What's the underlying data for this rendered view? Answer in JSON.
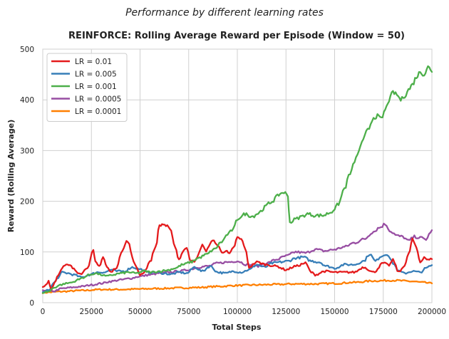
{
  "chart_data": {
    "type": "line",
    "suptitle": "Performance by different learning rates",
    "title": "REINFORCE: Rolling Average Reward per Episode (Window = 50)",
    "xlabel": "Total Steps",
    "ylabel": "Reward (Rolling Average)",
    "xlim": [
      0,
      200000
    ],
    "ylim": [
      0,
      500
    ],
    "xticks": [
      0,
      25000,
      50000,
      75000,
      100000,
      125000,
      150000,
      175000,
      200000
    ],
    "xtick_labels": [
      "0",
      "25000",
      "50000",
      "75000",
      "100000",
      "125000",
      "150000",
      "175000",
      "200000"
    ],
    "yticks": [
      0,
      100,
      200,
      300,
      400,
      500
    ],
    "ytick_labels": [
      "0",
      "100",
      "200",
      "300",
      "400",
      "500"
    ],
    "grid": true,
    "legend_position": "top-left",
    "series": [
      {
        "name": "LR = 0.01",
        "color": "#e41a1c",
        "x": [
          0,
          1500,
          3000,
          4500,
          6000,
          8000,
          10000,
          12000,
          14000,
          16000,
          18000,
          20000,
          23000,
          26000,
          27000,
          29000,
          31000,
          33000,
          35000,
          38000,
          41000,
          43000,
          44500,
          46000,
          48000,
          50000,
          52000,
          55000,
          58000,
          60000,
          62000,
          64000,
          66000,
          68000,
          70000,
          72000,
          74000,
          76000,
          78000,
          80000,
          82000,
          84000,
          86000,
          88000,
          90000,
          92000,
          94000,
          96000,
          98000,
          100000,
          102000,
          104000,
          106000,
          110000,
          115000,
          120000,
          125000,
          130000,
          135000,
          138000,
          140000,
          145000,
          150000,
          155000,
          160000,
          165000,
          170000,
          175000,
          178000,
          180000,
          183000,
          186000,
          188000,
          190000,
          192000,
          194000,
          196000,
          198000,
          200000
        ],
        "y": [
          30,
          35,
          43,
          25,
          40,
          55,
          70,
          74,
          73,
          66,
          60,
          58,
          70,
          102,
          80,
          72,
          90,
          70,
          60,
          70,
          105,
          122,
          115,
          88,
          70,
          55,
          60,
          80,
          110,
          152,
          155,
          150,
          140,
          110,
          85,
          100,
          110,
          82,
          80,
          95,
          115,
          100,
          118,
          122,
          112,
          100,
          102,
          96,
          108,
          128,
          125,
          108,
          70,
          80,
          75,
          72,
          65,
          72,
          78,
          60,
          55,
          62,
          60,
          60,
          60,
          70,
          60,
          78,
          74,
          84,
          60,
          74,
          95,
          125,
          108,
          80,
          90,
          84,
          86
        ]
      },
      {
        "name": "LR = 0.005",
        "color": "#377eb8",
        "x": [
          0,
          3000,
          6000,
          8000,
          10000,
          13000,
          16000,
          20000,
          24000,
          28000,
          32000,
          35000,
          38000,
          42000,
          46000,
          50000,
          54000,
          58000,
          62000,
          66000,
          70000,
          74000,
          78000,
          82000,
          86000,
          90000,
          94000,
          98000,
          102000,
          106000,
          110000,
          114000,
          118000,
          122000,
          126000,
          130000,
          134000,
          138000,
          142000,
          146000,
          150000,
          155000,
          160000,
          165000,
          168000,
          171000,
          174000,
          177000,
          180000,
          183000,
          186000,
          190000,
          194000,
          197000,
          200000
        ],
        "y": [
          20,
          25,
          40,
          50,
          60,
          58,
          55,
          50,
          55,
          60,
          60,
          65,
          62,
          62,
          70,
          66,
          60,
          60,
          58,
          56,
          60,
          58,
          70,
          62,
          72,
          60,
          58,
          62,
          60,
          65,
          75,
          70,
          78,
          80,
          82,
          88,
          90,
          82,
          80,
          72,
          68,
          75,
          75,
          82,
          96,
          82,
          92,
          96,
          78,
          62,
          58,
          62,
          60,
          68,
          74
        ]
      },
      {
        "name": "LR = 0.001",
        "color": "#4daf4a",
        "x": [
          0,
          3000,
          6000,
          9000,
          12000,
          15000,
          18000,
          21000,
          24000,
          27000,
          30000,
          33000,
          36000,
          40000,
          44000,
          48000,
          52000,
          56000,
          60000,
          64000,
          68000,
          72000,
          76000,
          80000,
          84000,
          88000,
          92000,
          95000,
          98000,
          100000,
          102000,
          104000,
          106000,
          108000,
          110000,
          112000,
          114000,
          116000,
          118000,
          120000,
          122000,
          124000,
          126000,
          127000,
          130000,
          133000,
          136000,
          140000,
          144000,
          148000,
          150000,
          152000,
          155000,
          158000,
          161000,
          164000,
          167000,
          170000,
          172000,
          174000,
          176000,
          178000,
          180000,
          182000,
          184000,
          186000,
          188000,
          190000,
          192000,
          194000,
          196000,
          198000,
          200000
        ],
        "y": [
          20,
          22,
          30,
          35,
          38,
          40,
          45,
          50,
          55,
          58,
          55,
          52,
          55,
          58,
          60,
          58,
          62,
          60,
          62,
          64,
          68,
          75,
          80,
          88,
          95,
          105,
          120,
          135,
          145,
          165,
          170,
          175,
          172,
          170,
          175,
          180,
          188,
          195,
          200,
          208,
          215,
          218,
          210,
          158,
          165,
          170,
          175,
          172,
          172,
          178,
          185,
          195,
          225,
          255,
          285,
          315,
          340,
          365,
          368,
          362,
          380,
          400,
          415,
          410,
          400,
          408,
          420,
          430,
          445,
          455,
          450,
          465,
          455
        ]
      },
      {
        "name": "LR = 0.0005",
        "color": "#984ea3",
        "x": [
          0,
          5000,
          10000,
          15000,
          20000,
          25000,
          30000,
          35000,
          40000,
          45000,
          50000,
          55000,
          60000,
          65000,
          70000,
          75000,
          80000,
          85000,
          90000,
          95000,
          100000,
          105000,
          110000,
          115000,
          120000,
          125000,
          130000,
          135000,
          140000,
          145000,
          150000,
          155000,
          160000,
          165000,
          170000,
          173000,
          176000,
          179000,
          182000,
          185000,
          188000,
          191000,
          194000,
          197000,
          200000
        ],
        "y": [
          25,
          22,
          28,
          30,
          32,
          35,
          38,
          42,
          45,
          48,
          52,
          55,
          58,
          60,
          62,
          65,
          70,
          72,
          78,
          80,
          82,
          75,
          72,
          78,
          85,
          92,
          100,
          98,
          105,
          102,
          105,
          110,
          118,
          125,
          140,
          148,
          155,
          140,
          132,
          130,
          122,
          130,
          128,
          125,
          143
        ]
      },
      {
        "name": "LR = 0.0001",
        "color": "#ff7f00",
        "x": [
          0,
          10000,
          20000,
          30000,
          40000,
          50000,
          60000,
          70000,
          80000,
          90000,
          100000,
          110000,
          120000,
          130000,
          140000,
          150000,
          160000,
          170000,
          180000,
          190000,
          195000,
          200000
        ],
        "y": [
          20,
          22,
          24,
          26,
          26,
          27,
          28,
          29,
          30,
          32,
          34,
          35,
          36,
          37,
          37,
          38,
          40,
          43,
          44,
          42,
          40,
          38
        ]
      }
    ]
  }
}
